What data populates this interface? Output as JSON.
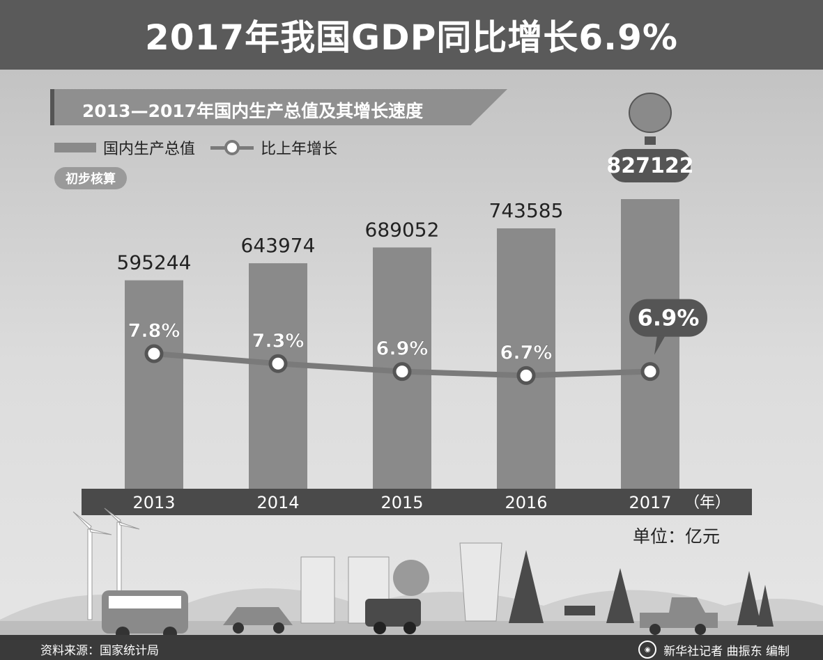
{
  "title": "2017年我国GDP同比增长6.9%",
  "subtitle": "2013—2017年国内生产总值及其增长速度",
  "legend": {
    "bar_label": "国内生产总值",
    "line_label": "比上年增长"
  },
  "badge": "初步核算",
  "unit": "单位：亿元",
  "x_suffix": "（年）",
  "footer": {
    "source": "资料来源：国家统计局",
    "credit": "新华社记者  曲振东  编制"
  },
  "colors": {
    "bar": "#8a8a8a",
    "bar_highlight": "#8a8a8a",
    "line": "#7a7a7a",
    "title_bg": "#5a5a5a"
  },
  "chart_data": {
    "type": "bar",
    "categories": [
      "2013",
      "2014",
      "2015",
      "2016",
      "2017"
    ],
    "series": [
      {
        "name": "国内生产总值",
        "type": "bar",
        "values": [
          595244,
          643974,
          689052,
          743585,
          827122
        ],
        "labels": [
          "595244",
          "643974",
          "689052",
          "743585",
          "827122"
        ]
      },
      {
        "name": "比上年增长",
        "type": "line",
        "values": [
          7.8,
          7.3,
          6.9,
          6.7,
          6.9
        ],
        "labels": [
          "7.8%",
          "7.3%",
          "6.9%",
          "6.7%",
          "6.9%"
        ]
      }
    ],
    "title": "2013—2017年国内生产总值及其增长速度",
    "xlabel": "（年）",
    "ylabel": "单位：亿元",
    "highlight": "2017"
  }
}
